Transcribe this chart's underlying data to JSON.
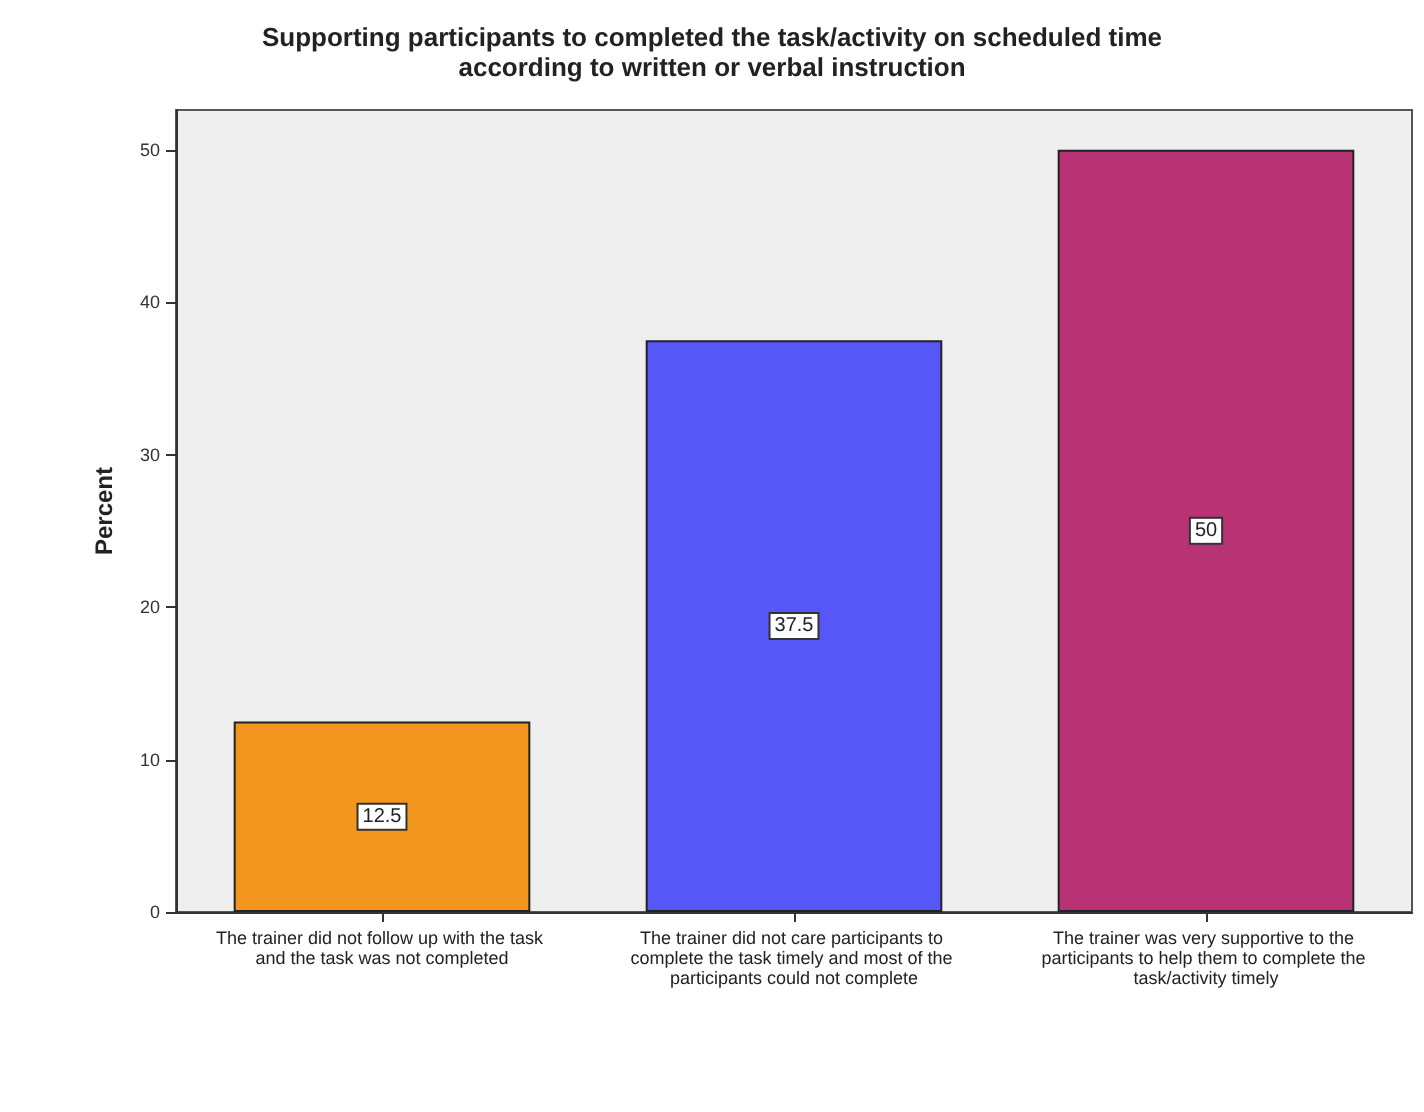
{
  "chart_data": {
    "type": "bar",
    "title": "Supporting participants to completed the task/activity on scheduled time\naccording to written or verbal instruction",
    "ylabel": "Percent",
    "categories": [
      "The trainer did not follow up with the task and the task was not completed",
      "The trainer did not care participants to complete the task timely and most of the participants could not complete",
      "The trainer was very supportive to the participants to help them to complete the task/activity timely"
    ],
    "values": [
      12.5,
      37.5,
      50
    ],
    "colors": [
      "#f3961e",
      "#5757f7",
      "#b83373"
    ],
    "ylim": [
      0,
      52.6
    ],
    "yticks": [
      0,
      10,
      20,
      30,
      40,
      50
    ],
    "grid": false,
    "data_labels": true
  }
}
